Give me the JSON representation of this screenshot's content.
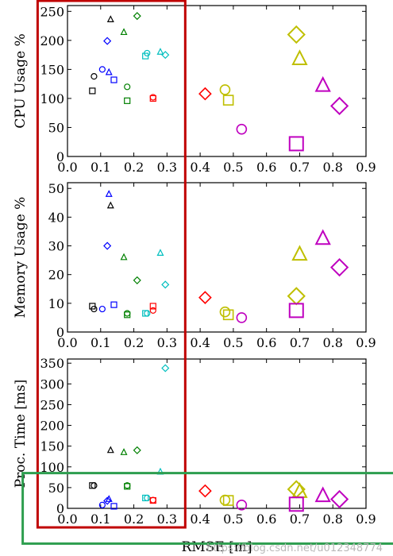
{
  "colors": {
    "black": "#000000",
    "blue": "#0000ff",
    "green": "#008000",
    "cyan": "#00bfbf",
    "red": "#ff0000",
    "yellow": "#bfbf00",
    "magenta": "#bf00bf",
    "red_box": "#c00000",
    "green_box": "#2e9e4f"
  },
  "chart_data": [
    {
      "type": "scatter",
      "ylabel": "CPU Usage %",
      "xlim": [
        0.0,
        0.9
      ],
      "ylim": [
        0,
        260
      ],
      "xticks": [
        "0.0",
        "0.1",
        "0.2",
        "0.3",
        "0.4",
        "0.5",
        "0.6",
        "0.7",
        "0.8",
        "0.9"
      ],
      "yticks": [
        "0",
        "50",
        "100",
        "150",
        "200",
        "250"
      ],
      "points": [
        {
          "x": 0.075,
          "y": 113,
          "marker": "square",
          "color": "black",
          "size": "s"
        },
        {
          "x": 0.08,
          "y": 138,
          "marker": "circle",
          "color": "black",
          "size": "s"
        },
        {
          "x": 0.13,
          "y": 236,
          "marker": "triangle",
          "color": "black",
          "size": "s"
        },
        {
          "x": 0.105,
          "y": 150,
          "marker": "circle",
          "color": "blue",
          "size": "s"
        },
        {
          "x": 0.12,
          "y": 199,
          "marker": "diamond",
          "color": "blue",
          "size": "s"
        },
        {
          "x": 0.125,
          "y": 145,
          "marker": "triangle",
          "color": "blue",
          "size": "s"
        },
        {
          "x": 0.14,
          "y": 132,
          "marker": "square",
          "color": "blue",
          "size": "s"
        },
        {
          "x": 0.17,
          "y": 214,
          "marker": "triangle",
          "color": "green",
          "size": "s"
        },
        {
          "x": 0.18,
          "y": 120,
          "marker": "circle",
          "color": "green",
          "size": "s"
        },
        {
          "x": 0.18,
          "y": 96,
          "marker": "square",
          "color": "green",
          "size": "s"
        },
        {
          "x": 0.21,
          "y": 242,
          "marker": "diamond",
          "color": "green",
          "size": "s"
        },
        {
          "x": 0.235,
          "y": 173,
          "marker": "square",
          "color": "cyan",
          "size": "s"
        },
        {
          "x": 0.24,
          "y": 178,
          "marker": "circle",
          "color": "cyan",
          "size": "s"
        },
        {
          "x": 0.28,
          "y": 180,
          "marker": "triangle",
          "color": "cyan",
          "size": "s"
        },
        {
          "x": 0.295,
          "y": 175,
          "marker": "diamond",
          "color": "cyan",
          "size": "s"
        },
        {
          "x": 0.258,
          "y": 102,
          "marker": "circle",
          "color": "red",
          "size": "s"
        },
        {
          "x": 0.258,
          "y": 100,
          "marker": "square",
          "color": "red",
          "size": "s"
        },
        {
          "x": 0.415,
          "y": 108,
          "marker": "diamond",
          "color": "red",
          "size": "m"
        },
        {
          "x": 0.475,
          "y": 115,
          "marker": "circle",
          "color": "yellow",
          "size": "m"
        },
        {
          "x": 0.485,
          "y": 97,
          "marker": "square",
          "color": "yellow",
          "size": "m"
        },
        {
          "x": 0.525,
          "y": 47,
          "marker": "circle",
          "color": "magenta",
          "size": "m"
        },
        {
          "x": 0.69,
          "y": 210,
          "marker": "diamond",
          "color": "yellow",
          "size": "l"
        },
        {
          "x": 0.7,
          "y": 168,
          "marker": "triangle",
          "color": "yellow",
          "size": "l"
        },
        {
          "x": 0.69,
          "y": 22,
          "marker": "square",
          "color": "magenta",
          "size": "l"
        },
        {
          "x": 0.77,
          "y": 122,
          "marker": "triangle",
          "color": "magenta",
          "size": "l"
        },
        {
          "x": 0.82,
          "y": 87,
          "marker": "diamond",
          "color": "magenta",
          "size": "l"
        }
      ]
    },
    {
      "type": "scatter",
      "ylabel": "Memory Usage %",
      "xlim": [
        0.0,
        0.9
      ],
      "ylim": [
        0,
        52
      ],
      "xticks": [
        "0.0",
        "0.1",
        "0.2",
        "0.3",
        "0.4",
        "0.5",
        "0.6",
        "0.7",
        "0.8",
        "0.9"
      ],
      "yticks": [
        "0",
        "10",
        "20",
        "30",
        "40",
        "50"
      ],
      "points": [
        {
          "x": 0.075,
          "y": 9,
          "marker": "square",
          "color": "black",
          "size": "s"
        },
        {
          "x": 0.08,
          "y": 8,
          "marker": "circle",
          "color": "black",
          "size": "s"
        },
        {
          "x": 0.13,
          "y": 44,
          "marker": "triangle",
          "color": "black",
          "size": "s"
        },
        {
          "x": 0.105,
          "y": 8,
          "marker": "circle",
          "color": "blue",
          "size": "s"
        },
        {
          "x": 0.12,
          "y": 30,
          "marker": "diamond",
          "color": "blue",
          "size": "s"
        },
        {
          "x": 0.125,
          "y": 48,
          "marker": "triangle",
          "color": "blue",
          "size": "s"
        },
        {
          "x": 0.14,
          "y": 9.5,
          "marker": "square",
          "color": "blue",
          "size": "s"
        },
        {
          "x": 0.17,
          "y": 26,
          "marker": "triangle",
          "color": "green",
          "size": "s"
        },
        {
          "x": 0.18,
          "y": 6.5,
          "marker": "circle",
          "color": "green",
          "size": "s"
        },
        {
          "x": 0.18,
          "y": 6,
          "marker": "square",
          "color": "green",
          "size": "s"
        },
        {
          "x": 0.21,
          "y": 18,
          "marker": "diamond",
          "color": "green",
          "size": "s"
        },
        {
          "x": 0.235,
          "y": 6.5,
          "marker": "square",
          "color": "cyan",
          "size": "s"
        },
        {
          "x": 0.24,
          "y": 6.5,
          "marker": "circle",
          "color": "cyan",
          "size": "s"
        },
        {
          "x": 0.28,
          "y": 27.5,
          "marker": "triangle",
          "color": "cyan",
          "size": "s"
        },
        {
          "x": 0.295,
          "y": 16.5,
          "marker": "diamond",
          "color": "cyan",
          "size": "s"
        },
        {
          "x": 0.258,
          "y": 7.5,
          "marker": "circle",
          "color": "red",
          "size": "s"
        },
        {
          "x": 0.258,
          "y": 9,
          "marker": "square",
          "color": "red",
          "size": "s"
        },
        {
          "x": 0.415,
          "y": 12,
          "marker": "diamond",
          "color": "red",
          "size": "m"
        },
        {
          "x": 0.475,
          "y": 7,
          "marker": "circle",
          "color": "yellow",
          "size": "m"
        },
        {
          "x": 0.485,
          "y": 6,
          "marker": "square",
          "color": "yellow",
          "size": "m"
        },
        {
          "x": 0.525,
          "y": 5,
          "marker": "circle",
          "color": "magenta",
          "size": "m"
        },
        {
          "x": 0.69,
          "y": 12.5,
          "marker": "diamond",
          "color": "yellow",
          "size": "l"
        },
        {
          "x": 0.7,
          "y": 27,
          "marker": "triangle",
          "color": "yellow",
          "size": "l"
        },
        {
          "x": 0.69,
          "y": 7.5,
          "marker": "square",
          "color": "magenta",
          "size": "l"
        },
        {
          "x": 0.77,
          "y": 32.5,
          "marker": "triangle",
          "color": "magenta",
          "size": "l"
        },
        {
          "x": 0.82,
          "y": 22.5,
          "marker": "diamond",
          "color": "magenta",
          "size": "l"
        }
      ]
    },
    {
      "type": "scatter",
      "ylabel": "Proc. Time [ms]",
      "xlabel": "RMSE [m]",
      "xlim": [
        0.0,
        0.9
      ],
      "ylim": [
        0,
        360
      ],
      "xticks": [
        "0.0",
        "0.1",
        "0.2",
        "0.3",
        "0.4",
        "0.5",
        "0.6",
        "0.7",
        "0.8",
        "0.9"
      ],
      "yticks": [
        "0",
        "50",
        "100",
        "150",
        "200",
        "250",
        "300",
        "350"
      ],
      "points": [
        {
          "x": 0.075,
          "y": 55,
          "marker": "square",
          "color": "black",
          "size": "s"
        },
        {
          "x": 0.08,
          "y": 55,
          "marker": "circle",
          "color": "black",
          "size": "s"
        },
        {
          "x": 0.13,
          "y": 140,
          "marker": "triangle",
          "color": "black",
          "size": "s"
        },
        {
          "x": 0.105,
          "y": 8,
          "marker": "circle",
          "color": "blue",
          "size": "s"
        },
        {
          "x": 0.12,
          "y": 18,
          "marker": "diamond",
          "color": "blue",
          "size": "s"
        },
        {
          "x": 0.125,
          "y": 22,
          "marker": "triangle",
          "color": "blue",
          "size": "s"
        },
        {
          "x": 0.14,
          "y": 5,
          "marker": "square",
          "color": "blue",
          "size": "s"
        },
        {
          "x": 0.17,
          "y": 135,
          "marker": "triangle",
          "color": "green",
          "size": "s"
        },
        {
          "x": 0.18,
          "y": 55,
          "marker": "circle",
          "color": "green",
          "size": "s"
        },
        {
          "x": 0.18,
          "y": 53,
          "marker": "square",
          "color": "green",
          "size": "s"
        },
        {
          "x": 0.21,
          "y": 140,
          "marker": "diamond",
          "color": "green",
          "size": "s"
        },
        {
          "x": 0.235,
          "y": 25,
          "marker": "square",
          "color": "cyan",
          "size": "s"
        },
        {
          "x": 0.24,
          "y": 25,
          "marker": "circle",
          "color": "cyan",
          "size": "s"
        },
        {
          "x": 0.28,
          "y": 88,
          "marker": "triangle",
          "color": "cyan",
          "size": "s"
        },
        {
          "x": 0.295,
          "y": 338,
          "marker": "diamond",
          "color": "cyan",
          "size": "s"
        },
        {
          "x": 0.258,
          "y": 20,
          "marker": "circle",
          "color": "red",
          "size": "s"
        },
        {
          "x": 0.258,
          "y": 19,
          "marker": "square",
          "color": "red",
          "size": "s"
        },
        {
          "x": 0.415,
          "y": 42,
          "marker": "diamond",
          "color": "red",
          "size": "m"
        },
        {
          "x": 0.475,
          "y": 20,
          "marker": "circle",
          "color": "yellow",
          "size": "m"
        },
        {
          "x": 0.485,
          "y": 19,
          "marker": "square",
          "color": "yellow",
          "size": "m"
        },
        {
          "x": 0.525,
          "y": 8,
          "marker": "circle",
          "color": "magenta",
          "size": "m"
        },
        {
          "x": 0.69,
          "y": 46,
          "marker": "diamond",
          "color": "yellow",
          "size": "l"
        },
        {
          "x": 0.7,
          "y": 40,
          "marker": "triangle",
          "color": "yellow",
          "size": "l"
        },
        {
          "x": 0.69,
          "y": 10,
          "marker": "square",
          "color": "magenta",
          "size": "l"
        },
        {
          "x": 0.77,
          "y": 30,
          "marker": "triangle",
          "color": "magenta",
          "size": "l"
        },
        {
          "x": 0.82,
          "y": 22,
          "marker": "diamond",
          "color": "magenta",
          "size": "l"
        }
      ]
    }
  ],
  "highlight_boxes": [
    {
      "name": "red-highlight-box",
      "color": "red_box",
      "x_range": [
        -0.09,
        0.355
      ],
      "span": "all-panels"
    },
    {
      "name": "green-highlight-box",
      "color": "green_box",
      "x_range": [
        -0.135,
        0.995
      ],
      "y_range_panel3": [
        -85,
        85
      ]
    }
  ],
  "watermark": "https://blog.csdn.net/u012348774"
}
